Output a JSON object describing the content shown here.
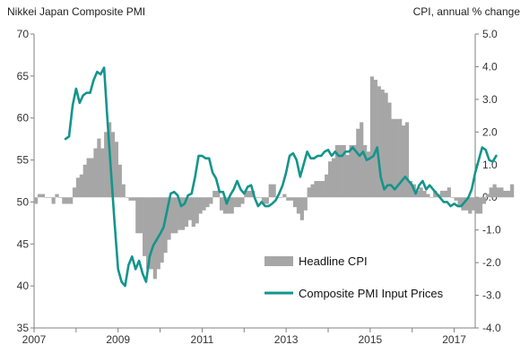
{
  "chart_data": {
    "type": "bar+line",
    "left_axis_title": "Nikkei Japan Composite PMI",
    "right_axis_title": "CPI, annual % change",
    "left_axis": {
      "min": 35,
      "max": 70,
      "ticks": [
        "70",
        "65",
        "60",
        "55",
        "50",
        "45",
        "40",
        "35"
      ]
    },
    "right_axis": {
      "min": -4.0,
      "max": 5.0,
      "ticks": [
        "5.0",
        "4.0",
        "3.0",
        "2.0",
        "1.0",
        "0.0",
        "-1.0",
        "-2.0",
        "-3.0",
        "-4.0"
      ]
    },
    "x_axis": {
      "min": 2007.0,
      "max": 2017.5,
      "labels": [
        "2007",
        "2009",
        "2011",
        "2013",
        "2015",
        "2017"
      ]
    },
    "series": [
      {
        "name": "Headline CPI",
        "type": "bar",
        "axis": "right",
        "color": "#a6a6a6",
        "x_start": 2007.0,
        "step": 0.08333,
        "values": [
          -0.2,
          0.1,
          0.1,
          0.0,
          0.0,
          -0.2,
          0.1,
          0.0,
          -0.2,
          -0.2,
          -0.2,
          0.3,
          0.6,
          0.7,
          1.0,
          1.2,
          1.2,
          1.5,
          1.8,
          1.5,
          2.0,
          2.3,
          2.0,
          1.7,
          1.0,
          0.4,
          0.0,
          -0.1,
          -0.1,
          -1.1,
          -1.1,
          -1.8,
          -2.2,
          -2.2,
          -2.5,
          -2.2,
          -2.0,
          -1.7,
          -1.3,
          -1.1,
          -1.1,
          -1.0,
          -1.0,
          -0.9,
          -0.7,
          -0.9,
          -0.8,
          -0.5,
          -0.4,
          -0.3,
          -0.2,
          0.2,
          0.2,
          -0.4,
          -0.5,
          -0.5,
          -0.5,
          -0.3,
          -0.3,
          -0.2,
          0.2,
          0.2,
          0.2,
          0.0,
          0.0,
          -0.2,
          -0.2,
          0.4,
          0.4,
          0.0,
          0.0,
          0.1,
          -0.1,
          -0.1,
          -0.3,
          -0.5,
          -0.7,
          -0.4,
          0.3,
          0.4,
          0.5,
          0.5,
          0.5,
          0.7,
          1.1,
          1.2,
          1.6,
          1.6,
          1.6,
          1.3,
          1.6,
          1.6,
          2.1,
          2.3,
          1.6,
          1.4,
          3.7,
          3.6,
          3.4,
          3.3,
          3.2,
          2.9,
          2.4,
          2.4,
          2.4,
          2.2,
          2.3,
          0.5,
          0.4,
          0.2,
          0.3,
          0.2,
          0.1,
          0.0,
          0.2,
          0.1,
          0.2,
          0.2,
          0.3,
          0.0,
          -0.1,
          -0.3,
          -0.4,
          -0.4,
          -0.5,
          -0.4,
          -0.5,
          -0.5,
          -0.2,
          0.1,
          0.3,
          0.4,
          0.3,
          0.3,
          0.2,
          0.2,
          0.4
        ]
      },
      {
        "name": "Composite PMI Input Prices",
        "type": "line",
        "axis": "left",
        "color": "#13958c",
        "x_start": 2007.75,
        "step": 0.08333,
        "values": [
          57.5,
          57.8,
          61.5,
          63.5,
          61.8,
          62.7,
          63.0,
          63.0,
          64.5,
          65.5,
          65.2,
          66.0,
          59.5,
          53.5,
          47.5,
          42.0,
          40.5,
          40.0,
          42.5,
          43.5,
          42.0,
          43.0,
          41.5,
          40.5,
          43.5,
          44.8,
          45.5,
          46.2,
          47.0,
          49.0,
          51.0,
          51.2,
          50.8,
          49.5,
          49.8,
          50.8,
          51.0,
          53.0,
          55.5,
          55.5,
          55.2,
          55.2,
          53.5,
          52.8,
          51.2,
          51.2,
          49.8,
          50.8,
          51.5,
          52.5,
          51.5,
          51.0,
          51.8,
          52.0,
          50.5,
          49.5,
          50.0,
          49.5,
          49.5,
          49.8,
          50.2,
          51.0,
          52.0,
          53.5,
          55.5,
          55.8,
          55.0,
          53.0,
          54.5,
          56.0,
          55.2,
          55.2,
          55.5,
          55.5,
          56.0,
          56.2,
          55.5,
          56.0,
          55.5,
          55.5,
          56.0,
          56.0,
          56.5,
          56.0,
          55.5,
          56.0,
          55.0,
          55.2,
          55.5,
          56.5,
          53.0,
          51.5,
          52.0,
          52.0,
          51.5,
          52.0,
          52.5,
          53.0,
          52.5,
          52.0,
          51.0,
          52.0,
          52.5,
          51.5,
          52.0,
          51.5,
          51.0,
          50.5,
          50.0,
          50.0,
          49.5,
          49.8,
          49.5,
          49.5,
          50.0,
          50.5,
          51.5,
          53.5,
          55.0,
          56.5,
          56.2,
          55.0,
          54.8,
          55.5
        ]
      }
    ]
  }
}
